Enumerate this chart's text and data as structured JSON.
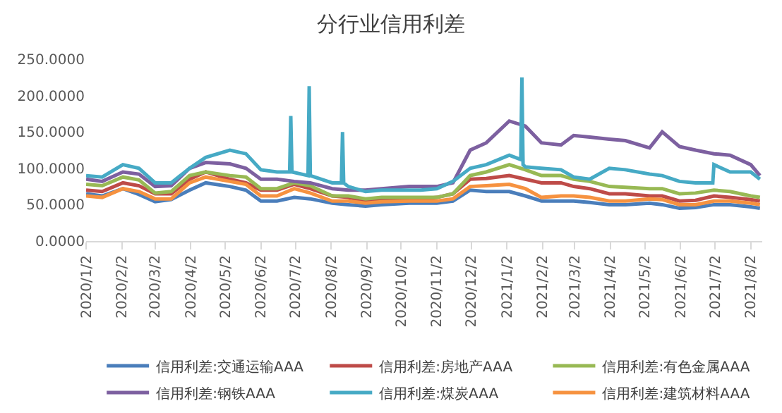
{
  "chart_data": {
    "type": "line",
    "title": "分行业信用利差",
    "x": [
      "2020-01-02",
      "2020-01-16",
      "2020-02-03",
      "2020-02-17",
      "2020-03-02",
      "2020-03-16",
      "2020-04-01",
      "2020-04-15",
      "2020-05-06",
      "2020-05-20",
      "2020-06-02",
      "2020-06-16",
      "2020-07-01",
      "2020-07-15",
      "2020-08-03",
      "2020-08-17",
      "2020-09-01",
      "2020-09-15",
      "2020-10-09",
      "2020-10-19",
      "2020-11-02",
      "2020-11-16",
      "2020-12-01",
      "2020-12-15",
      "2021-01-04",
      "2021-01-18",
      "2021-02-01",
      "2021-02-18",
      "2021-03-01",
      "2021-03-15",
      "2021-04-01",
      "2021-04-15",
      "2021-05-06",
      "2021-05-17",
      "2021-06-01",
      "2021-06-15",
      "2021-07-01",
      "2021-07-15",
      "2021-08-02",
      "2021-08-10"
    ],
    "series": [
      {
        "name": "信用利差:交通运输AAA",
        "color": "#4a7ebb",
        "values": [
          65,
          62,
          72,
          64,
          54,
          57,
          70,
          80,
          75,
          70,
          55,
          55,
          60,
          58,
          52,
          50,
          48,
          50,
          52,
          52,
          52,
          55,
          70,
          68,
          68,
          62,
          55,
          55,
          55,
          53,
          50,
          50,
          52,
          50,
          45,
          46,
          50,
          50,
          47,
          45
        ]
      },
      {
        "name": "信用利差:房地产AAA",
        "color": "#be4b48",
        "values": [
          70,
          68,
          80,
          76,
          65,
          65,
          85,
          95,
          85,
          80,
          70,
          70,
          78,
          72,
          62,
          60,
          55,
          57,
          58,
          58,
          60,
          65,
          85,
          86,
          90,
          85,
          80,
          80,
          75,
          72,
          65,
          65,
          62,
          62,
          55,
          56,
          62,
          60,
          57,
          55
        ]
      },
      {
        "name": "信用利差:有色金属AAA",
        "color": "#98b954",
        "values": [
          78,
          76,
          88,
          84,
          66,
          68,
          90,
          95,
          90,
          88,
          72,
          72,
          80,
          76,
          62,
          62,
          58,
          60,
          60,
          60,
          60,
          65,
          90,
          95,
          105,
          98,
          90,
          90,
          85,
          82,
          75,
          74,
          72,
          72,
          65,
          66,
          70,
          68,
          62,
          60
        ]
      },
      {
        "name": "信用利差:钢铁AAA",
        "color": "#7d60a0",
        "values": [
          85,
          82,
          95,
          92,
          75,
          76,
          100,
          108,
          106,
          100,
          85,
          85,
          82,
          80,
          72,
          70,
          70,
          72,
          75,
          75,
          75,
          80,
          125,
          135,
          165,
          158,
          135,
          132,
          145,
          143,
          140,
          138,
          128,
          150,
          130,
          125,
          120,
          118,
          105,
          90
        ]
      },
      {
        "name": "信用利差:煤炭AAA",
        "color": "#46aac5",
        "x": [
          "2020-01-02",
          "2020-01-16",
          "2020-02-03",
          "2020-02-17",
          "2020-03-02",
          "2020-03-16",
          "2020-04-01",
          "2020-04-15",
          "2020-05-06",
          "2020-05-20",
          "2020-06-02",
          "2020-06-16",
          "2020-06-27",
          "2020-06-28",
          "2020-06-29",
          "2020-07-13",
          "2020-07-14",
          "2020-07-15",
          "2020-08-03",
          "2020-08-11",
          "2020-08-12",
          "2020-08-13",
          "2020-08-17",
          "2020-09-01",
          "2020-09-15",
          "2020-10-09",
          "2020-10-19",
          "2020-11-02",
          "2020-11-16",
          "2020-12-01",
          "2020-12-15",
          "2021-01-04",
          "2021-01-14",
          "2021-01-15",
          "2021-01-16",
          "2021-01-18",
          "2021-02-01",
          "2021-02-18",
          "2021-03-01",
          "2021-03-15",
          "2021-04-01",
          "2021-04-15",
          "2021-05-06",
          "2021-05-17",
          "2021-06-01",
          "2021-06-15",
          "2021-06-30",
          "2021-07-01",
          "2021-07-15",
          "2021-08-02",
          "2021-08-10"
        ],
        "values": [
          90,
          88,
          105,
          100,
          80,
          80,
          100,
          115,
          125,
          120,
          98,
          95,
          95,
          172,
          95,
          90,
          213,
          90,
          80,
          80,
          150,
          80,
          75,
          68,
          70,
          70,
          70,
          72,
          82,
          100,
          105,
          118,
          112,
          225,
          105,
          102,
          100,
          98,
          88,
          85,
          100,
          98,
          92,
          90,
          82,
          80,
          80,
          105,
          95,
          95,
          85
        ]
      },
      {
        "name": "信用利差:建筑材料AAA",
        "color": "#f69240",
        "values": [
          62,
          60,
          72,
          68,
          58,
          58,
          80,
          88,
          82,
          78,
          62,
          62,
          72,
          66,
          55,
          55,
          52,
          54,
          55,
          55,
          55,
          58,
          75,
          76,
          78,
          72,
          60,
          62,
          62,
          60,
          55,
          55,
          58,
          57,
          50,
          50,
          55,
          55,
          52,
          50
        ]
      }
    ],
    "xlim": [
      "2020-01-02",
      "2021-08-12"
    ],
    "xticks": [
      {
        "value": "2020-01-02",
        "label": "2020/1/2"
      },
      {
        "value": "2020-02-02",
        "label": "2020/2/2"
      },
      {
        "value": "2020-03-02",
        "label": "2020/3/2"
      },
      {
        "value": "2020-04-02",
        "label": "2020/4/2"
      },
      {
        "value": "2020-05-02",
        "label": "2020/5/2"
      },
      {
        "value": "2020-06-02",
        "label": "2020/6/2"
      },
      {
        "value": "2020-07-02",
        "label": "2020/7/2"
      },
      {
        "value": "2020-08-02",
        "label": "2020/8/2"
      },
      {
        "value": "2020-09-02",
        "label": "2020/9/2"
      },
      {
        "value": "2020-10-02",
        "label": "2020/10/2"
      },
      {
        "value": "2020-11-02",
        "label": "2020/11/2"
      },
      {
        "value": "2020-12-02",
        "label": "2020/12/2"
      },
      {
        "value": "2021-01-02",
        "label": "2021/1/2"
      },
      {
        "value": "2021-02-02",
        "label": "2021/2/2"
      },
      {
        "value": "2021-03-02",
        "label": "2021/3/2"
      },
      {
        "value": "2021-04-02",
        "label": "2021/4/2"
      },
      {
        "value": "2021-05-02",
        "label": "2021/5/2"
      },
      {
        "value": "2021-06-02",
        "label": "2021/6/2"
      },
      {
        "value": "2021-07-02",
        "label": "2021/7/2"
      },
      {
        "value": "2021-08-02",
        "label": "2021/8/2"
      }
    ],
    "ylim": [
      0,
      250
    ],
    "yticks": [
      {
        "value": 0,
        "label": "0.0000"
      },
      {
        "value": 50,
        "label": "50.0000"
      },
      {
        "value": 100,
        "label": "100.0000"
      },
      {
        "value": 150,
        "label": "150.0000"
      },
      {
        "value": 200,
        "label": "200.0000"
      },
      {
        "value": 250,
        "label": "250.0000"
      }
    ],
    "grid": false,
    "legend": "bottom",
    "marker": "none",
    "line_style": "solid"
  }
}
